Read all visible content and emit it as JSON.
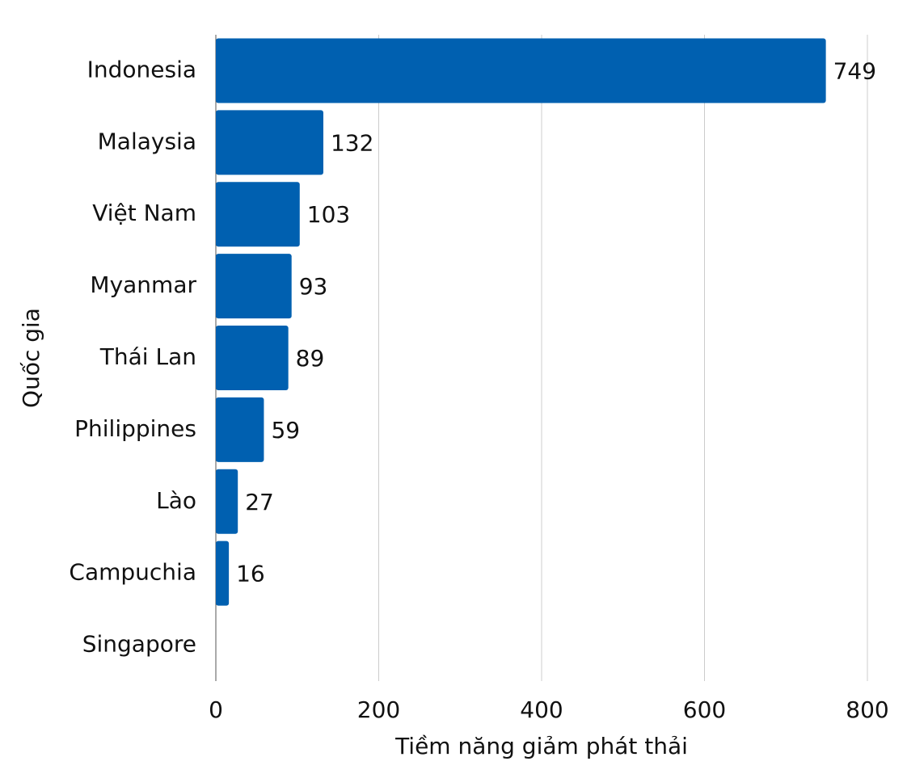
{
  "chart_data": {
    "type": "barh",
    "xlabel": "Tiềm năng giảm phát thải",
    "ylabel": "Quốc gia",
    "categories": [
      "Indonesia",
      "Malaysia",
      "Việt Nam",
      "Myanmar",
      "Thái Lan",
      "Philippines",
      "Lào",
      "Campuchia",
      "Singapore"
    ],
    "values": [
      749,
      132,
      103,
      93,
      89,
      59,
      27,
      16,
      null
    ],
    "color": "#0060b0",
    "xlim": [
      0,
      800
    ],
    "xticks": [
      0,
      200,
      400,
      600,
      800
    ],
    "grid": true
  }
}
